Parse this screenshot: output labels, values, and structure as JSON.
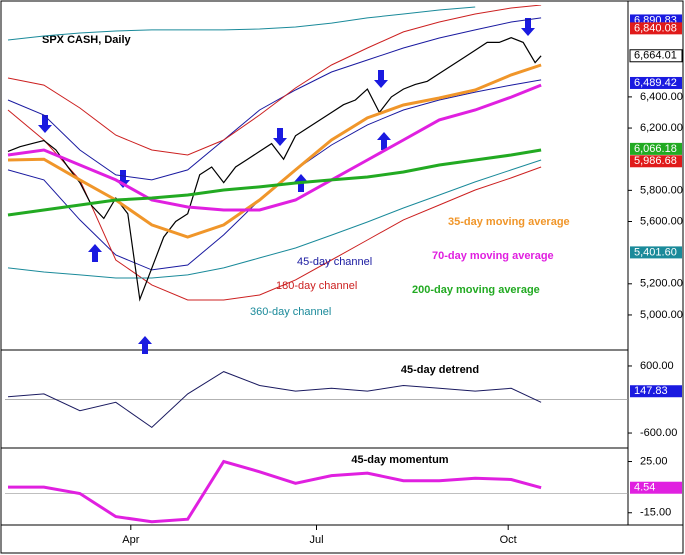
{
  "chart_data": {
    "type": "line",
    "title": "SPX CASH, Daily",
    "xlim": [
      0,
      207
    ],
    "xticks": [
      {
        "value": 41,
        "label": "Apr"
      },
      {
        "value": 103,
        "label": "Jul"
      },
      {
        "value": 167,
        "label": "Oct"
      }
    ],
    "ylim": [
      4775,
      6990
    ],
    "yticks": [
      {
        "value": 5000,
        "label": "5,000.00"
      },
      {
        "value": 5200,
        "label": "5,200.00"
      },
      {
        "value": 5600,
        "label": "5,600.00"
      },
      {
        "value": 5800,
        "label": "5,800.00"
      },
      {
        "value": 6200,
        "label": "6,200.00"
      },
      {
        "value": 6400,
        "label": "6,400.00"
      }
    ],
    "x": [
      0,
      12,
      24,
      36,
      48,
      60,
      72,
      84,
      96,
      108,
      120,
      132,
      144,
      156,
      168,
      178
    ],
    "close": {
      "color": "#000000",
      "x": [
        0,
        4,
        8,
        12,
        16,
        20,
        24,
        28,
        32,
        36,
        40,
        44,
        48,
        52,
        56,
        60,
        64,
        68,
        72,
        76,
        80,
        84,
        88,
        92,
        96,
        100,
        104,
        108,
        112,
        116,
        120,
        124,
        128,
        132,
        136,
        140,
        144,
        148,
        152,
        156,
        160,
        164,
        168,
        172,
        176,
        178
      ],
      "values": [
        6050,
        6080,
        6100,
        6120,
        6060,
        5950,
        5850,
        5700,
        5620,
        5750,
        5650,
        5100,
        5300,
        5500,
        5600,
        5650,
        5900,
        5950,
        5850,
        5950,
        6000,
        6050,
        6100,
        6000,
        6150,
        6200,
        6250,
        6300,
        6350,
        6380,
        6450,
        6300,
        6400,
        6450,
        6480,
        6500,
        6550,
        6600,
        6650,
        6700,
        6750,
        6750,
        6780,
        6750,
        6620,
        6664
      ]
    },
    "series": [
      {
        "name": "35-day moving average",
        "color": "#f0962a",
        "values": [
          5995,
          6000,
          5867,
          5738,
          5578,
          5500,
          5578,
          5738,
          5931,
          6123,
          6265,
          6348,
          6393,
          6444,
          6541,
          6605
        ]
      },
      {
        "name": "70-day moving average",
        "color": "#e020e0",
        "values": [
          6027,
          6059,
          5963,
          5867,
          5738,
          5693,
          5674,
          5674,
          5738,
          5867,
          5995,
          6123,
          6252,
          6316,
          6399,
          6476
        ]
      },
      {
        "name": "200-day moving average",
        "color": "#22aa22",
        "values": [
          5642,
          5674,
          5706,
          5738,
          5751,
          5770,
          5802,
          5822,
          5847,
          5867,
          5886,
          5918,
          5963,
          5995,
          6027,
          6059
        ]
      }
    ],
    "channels": [
      {
        "name": "45-day channel",
        "color": "#1a1aa0",
        "upper": [
          6380,
          6284,
          6059,
          5899,
          5867,
          5931,
          6123,
          6316,
          6444,
          6560,
          6637,
          6714,
          6778,
          6830,
          6881,
          6907
        ],
        "lower": [
          5931,
          5867,
          5610,
          5385,
          5289,
          5321,
          5514,
          5738,
          5931,
          6091,
          6220,
          6316,
          6380,
          6431,
          6476,
          6509
        ]
      },
      {
        "name": "180-day channel",
        "color": "#cc2020",
        "upper": [
          6521,
          6476,
          6329,
          6155,
          6059,
          6027,
          6123,
          6284,
          6457,
          6605,
          6714,
          6817,
          6881,
          6932,
          6971,
          6990
        ],
        "lower": [
          6316,
          6123,
          5867,
          5353,
          5193,
          5096,
          5096,
          5128,
          5225,
          5353,
          5481,
          5610,
          5706,
          5802,
          5880,
          5950
        ]
      },
      {
        "name": "360-day channel",
        "color": "#1a8a9a",
        "upper": [
          6765,
          6791,
          6810,
          6823,
          6830,
          6830,
          6830,
          6836,
          6849,
          6874,
          6907,
          6932,
          6958,
          6977,
          null,
          null
        ],
        "lower": [
          5302,
          5276,
          5257,
          5237,
          5237,
          5257,
          5302,
          5366,
          5430,
          5513,
          5597,
          5687,
          5770,
          5854,
          5931,
          5995
        ]
      }
    ],
    "badges": [
      {
        "value": 6890.83,
        "label": "6,890.83",
        "color": "#1a1ae0"
      },
      {
        "value": 6840.08,
        "label": "6,840.08",
        "color": "#e01a1a"
      },
      {
        "value": 6664.01,
        "label": "6,664.01",
        "color": "#ffffff"
      },
      {
        "value": 6489.42,
        "label": "6,489.42",
        "color": "#1a1ae0"
      },
      {
        "value": 6066.18,
        "label": "6,066.18",
        "color": "#22aa22"
      },
      {
        "value": 5986.68,
        "label": "5,986.68",
        "color": "#e01a1a"
      },
      {
        "value": 5401.6,
        "label": "5,401.60",
        "color": "#1a8a9a"
      }
    ],
    "detrend": {
      "title": "45-day detrend",
      "color": "#1a1a60",
      "ylim": [
        -850,
        850
      ],
      "yticks": [
        {
          "value": 600,
          "label": "600.00"
        },
        {
          "value": -600,
          "label": "-600.00"
        }
      ],
      "values": [
        50,
        100,
        -200,
        -50,
        -500,
        100,
        500,
        250,
        150,
        200,
        150,
        250,
        200,
        150,
        200,
        -50
      ],
      "badge": {
        "value": 147.83,
        "label": "147.83",
        "color": "#1a1ae0"
      }
    },
    "momentum": {
      "title": "45-day momentum",
      "color": "#e020e0",
      "ylim": [
        -23,
        34
      ],
      "yticks": [
        {
          "value": 25,
          "label": "25.00"
        },
        {
          "value": -15,
          "label": "-15.00"
        }
      ],
      "values": [
        5,
        5,
        0,
        -18,
        -22,
        -20,
        25,
        17,
        8,
        14,
        16,
        10,
        10,
        12,
        11,
        4.54
      ],
      "badge": {
        "value": 4.54,
        "label": "4.54",
        "color": "#e020e0"
      }
    }
  }
}
